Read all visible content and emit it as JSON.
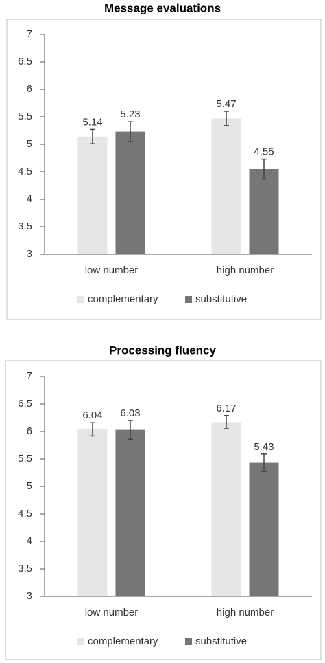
{
  "chart_data": [
    {
      "type": "bar",
      "title": "Message evaluations",
      "categories": [
        "low number",
        "high number"
      ],
      "series": [
        {
          "name": "complementary",
          "color": "#e6e6e6",
          "values": [
            5.14,
            5.47
          ],
          "errors": [
            0.13,
            0.13
          ]
        },
        {
          "name": "substitutive",
          "color": "#767676",
          "values": [
            5.23,
            4.55
          ],
          "errors": [
            0.18,
            0.18
          ]
        }
      ],
      "ylim": [
        3,
        7
      ],
      "yticks": [
        3,
        3.5,
        4,
        4.5,
        5,
        5.5,
        6,
        6.5,
        7
      ],
      "legend": "bottom"
    },
    {
      "type": "bar",
      "title": "Processing fluency",
      "categories": [
        "low number",
        "high number"
      ],
      "series": [
        {
          "name": "complementary",
          "color": "#e6e6e6",
          "values": [
            6.04,
            6.17
          ],
          "errors": [
            0.12,
            0.12
          ]
        },
        {
          "name": "substitutive",
          "color": "#767676",
          "values": [
            6.03,
            5.43
          ],
          "errors": [
            0.17,
            0.16
          ]
        }
      ],
      "ylim": [
        3,
        7
      ],
      "yticks": [
        3,
        3.5,
        4,
        4.5,
        5,
        5.5,
        6,
        6.5,
        7
      ],
      "legend": "bottom"
    }
  ]
}
